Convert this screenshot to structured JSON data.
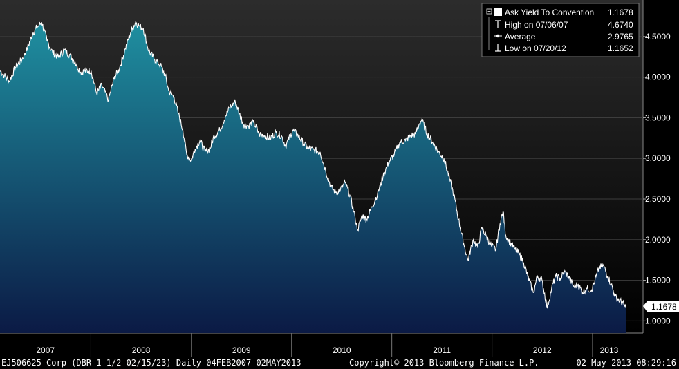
{
  "legend": {
    "rows": [
      {
        "label": "Ask Yield To Convention",
        "value": "1.1678",
        "icon": "filled-square-icon"
      },
      {
        "label": "High on 07/06/07",
        "value": "4.6740",
        "icon": "high-marker-icon"
      },
      {
        "label": "Average",
        "value": "2.9765",
        "icon": "average-marker-icon"
      },
      {
        "label": "Low on 07/20/12",
        "value": "1.1652",
        "icon": "low-marker-icon"
      }
    ]
  },
  "footer": {
    "security": "EJ506625 Corp (DBR 1 1/2 02/15/23)  Daily 04FEB2007-02MAY2013",
    "copyright": "Copyright© 2013 Bloomberg Finance L.P.",
    "timestamp": "02-May-2013 08:29:16"
  },
  "last_value_label": "1.1678",
  "colors": {
    "area_top": "#1f8fa0",
    "area_bottom": "#0b1a45",
    "line": "#ffffff",
    "plot_bg_top": "#2c2c2c",
    "plot_bg_bottom": "#000000"
  },
  "chart_data": {
    "type": "area",
    "ylabel": "",
    "xlabel": "",
    "y_ticks": [
      "1.0000",
      "1.5000",
      "2.0000",
      "2.5000",
      "3.0000",
      "3.5000",
      "4.0000",
      "4.5000"
    ],
    "ylim": [
      0.85,
      4.95
    ],
    "x_year_labels": [
      "2007",
      "2008",
      "2009",
      "2010",
      "2011",
      "2012",
      "2013"
    ],
    "x_range": [
      "2007-02-04",
      "2013-05-02"
    ],
    "grid": "horizontal",
    "legend_position": "top-right",
    "series": [
      {
        "name": "Ask Yield To Convention",
        "points": [
          [
            "2007-02-04",
            4.08
          ],
          [
            "2007-02-20",
            4.02
          ],
          [
            "2007-03-10",
            3.95
          ],
          [
            "2007-04-01",
            4.12
          ],
          [
            "2007-04-25",
            4.22
          ],
          [
            "2007-05-15",
            4.36
          ],
          [
            "2007-06-05",
            4.55
          ],
          [
            "2007-06-20",
            4.62
          ],
          [
            "2007-07-06",
            4.674
          ],
          [
            "2007-07-25",
            4.45
          ],
          [
            "2007-08-15",
            4.3
          ],
          [
            "2007-09-05",
            4.25
          ],
          [
            "2007-09-25",
            4.33
          ],
          [
            "2007-10-15",
            4.28
          ],
          [
            "2007-11-05",
            4.18
          ],
          [
            "2007-11-25",
            4.06
          ],
          [
            "2007-12-10",
            4.08
          ],
          [
            "2008-01-02",
            4.08
          ],
          [
            "2008-01-22",
            3.8
          ],
          [
            "2008-02-10",
            3.9
          ],
          [
            "2008-03-05",
            3.72
          ],
          [
            "2008-03-25",
            3.98
          ],
          [
            "2008-04-15",
            4.12
          ],
          [
            "2008-05-05",
            4.35
          ],
          [
            "2008-05-25",
            4.55
          ],
          [
            "2008-06-12",
            4.68
          ],
          [
            "2008-06-28",
            4.62
          ],
          [
            "2008-07-10",
            4.6
          ],
          [
            "2008-07-30",
            4.32
          ],
          [
            "2008-08-20",
            4.22
          ],
          [
            "2008-09-10",
            4.15
          ],
          [
            "2008-09-28",
            4.02
          ],
          [
            "2008-10-10",
            3.84
          ],
          [
            "2008-10-30",
            3.75
          ],
          [
            "2008-11-15",
            3.55
          ],
          [
            "2008-12-01",
            3.35
          ],
          [
            "2008-12-15",
            3.05
          ],
          [
            "2008-12-31",
            2.98
          ],
          [
            "2009-01-15",
            3.12
          ],
          [
            "2009-02-01",
            3.22
          ],
          [
            "2009-02-20",
            3.08
          ],
          [
            "2009-03-10",
            3.12
          ],
          [
            "2009-03-25",
            3.28
          ],
          [
            "2009-04-15",
            3.35
          ],
          [
            "2009-05-05",
            3.52
          ],
          [
            "2009-05-20",
            3.62
          ],
          [
            "2009-06-10",
            3.7
          ],
          [
            "2009-06-25",
            3.55
          ],
          [
            "2009-07-10",
            3.42
          ],
          [
            "2009-07-28",
            3.4
          ],
          [
            "2009-08-15",
            3.45
          ],
          [
            "2009-09-05",
            3.3
          ],
          [
            "2009-09-25",
            3.28
          ],
          [
            "2009-10-15",
            3.25
          ],
          [
            "2009-11-05",
            3.32
          ],
          [
            "2009-11-25",
            3.28
          ],
          [
            "2009-12-10",
            3.15
          ],
          [
            "2010-01-05",
            3.35
          ],
          [
            "2010-01-25",
            3.28
          ],
          [
            "2010-02-15",
            3.18
          ],
          [
            "2010-03-05",
            3.12
          ],
          [
            "2010-03-25",
            3.1
          ],
          [
            "2010-04-15",
            3.08
          ],
          [
            "2010-05-05",
            2.85
          ],
          [
            "2010-05-25",
            2.65
          ],
          [
            "2010-06-10",
            2.58
          ],
          [
            "2010-06-28",
            2.62
          ],
          [
            "2010-07-15",
            2.7
          ],
          [
            "2010-08-01",
            2.55
          ],
          [
            "2010-08-20",
            2.28
          ],
          [
            "2010-08-30",
            2.12
          ],
          [
            "2010-09-15",
            2.3
          ],
          [
            "2010-10-01",
            2.25
          ],
          [
            "2010-10-20",
            2.4
          ],
          [
            "2010-11-10",
            2.56
          ],
          [
            "2010-11-30",
            2.78
          ],
          [
            "2010-12-20",
            2.95
          ],
          [
            "2011-01-10",
            3.05
          ],
          [
            "2011-01-30",
            3.2
          ],
          [
            "2011-02-20",
            3.22
          ],
          [
            "2011-03-10",
            3.28
          ],
          [
            "2011-03-28",
            3.3
          ],
          [
            "2011-04-10",
            3.42
          ],
          [
            "2011-04-20",
            3.48
          ],
          [
            "2011-05-10",
            3.3
          ],
          [
            "2011-05-30",
            3.2
          ],
          [
            "2011-06-20",
            3.08
          ],
          [
            "2011-07-10",
            3.0
          ],
          [
            "2011-07-30",
            2.75
          ],
          [
            "2011-08-15",
            2.55
          ],
          [
            "2011-09-01",
            2.25
          ],
          [
            "2011-09-20",
            1.95
          ],
          [
            "2011-10-05",
            1.75
          ],
          [
            "2011-10-25",
            2.0
          ],
          [
            "2011-11-10",
            1.9
          ],
          [
            "2011-11-25",
            2.15
          ],
          [
            "2011-12-10",
            2.05
          ],
          [
            "2011-12-30",
            1.92
          ],
          [
            "2012-01-15",
            1.88
          ],
          [
            "2012-01-30",
            2.2
          ],
          [
            "2012-02-10",
            2.35
          ],
          [
            "2012-02-20",
            2.05
          ],
          [
            "2012-03-10",
            1.95
          ],
          [
            "2012-03-25",
            1.88
          ],
          [
            "2012-04-10",
            1.82
          ],
          [
            "2012-04-25",
            1.72
          ],
          [
            "2012-05-10",
            1.55
          ],
          [
            "2012-05-30",
            1.35
          ],
          [
            "2012-06-15",
            1.55
          ],
          [
            "2012-07-01",
            1.5
          ],
          [
            "2012-07-20",
            1.165
          ],
          [
            "2012-08-05",
            1.4
          ],
          [
            "2012-08-20",
            1.55
          ],
          [
            "2012-09-05",
            1.52
          ],
          [
            "2012-09-20",
            1.6
          ],
          [
            "2012-10-05",
            1.55
          ],
          [
            "2012-10-25",
            1.42
          ],
          [
            "2012-11-10",
            1.45
          ],
          [
            "2012-11-25",
            1.35
          ],
          [
            "2012-12-10",
            1.4
          ],
          [
            "2012-12-28",
            1.38
          ],
          [
            "2013-01-10",
            1.5
          ],
          [
            "2013-01-25",
            1.65
          ],
          [
            "2013-02-10",
            1.68
          ],
          [
            "2013-02-25",
            1.55
          ],
          [
            "2013-03-10",
            1.45
          ],
          [
            "2013-03-25",
            1.3
          ],
          [
            "2013-04-10",
            1.25
          ],
          [
            "2013-04-25",
            1.2
          ],
          [
            "2013-05-02",
            1.1678
          ]
        ]
      }
    ]
  }
}
